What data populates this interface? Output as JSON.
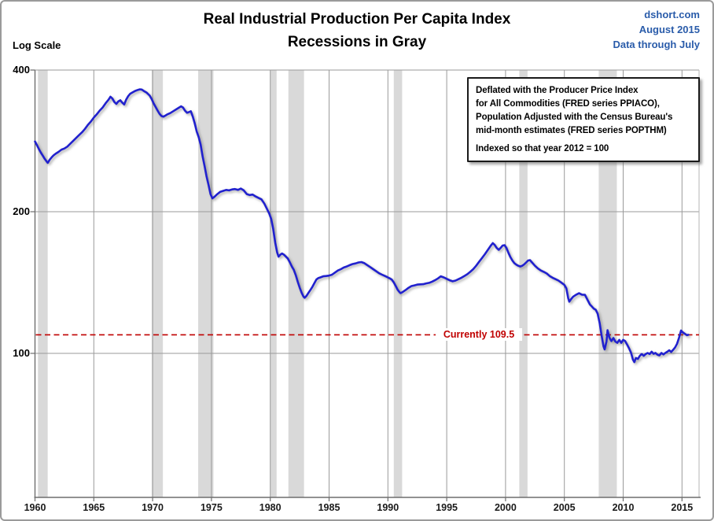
{
  "header": {
    "title_line1": "Real Industrial Production Per Capita Index",
    "title_line2": "Recessions in Gray",
    "source": "dshort.com",
    "issue_date": "August 2015",
    "data_through": "Data through July"
  },
  "axis": {
    "log_scale_label": "Log Scale",
    "y_tick_labels": [
      "400",
      "200",
      "100"
    ],
    "x_tick_labels": [
      "1960",
      "1965",
      "1970",
      "1975",
      "1980",
      "1985",
      "1990",
      "1995",
      "2000",
      "2005",
      "2010",
      "2015"
    ]
  },
  "annotation_box": {
    "lines": [
      "Deflated with the Producer Price Index",
      "for All Commodities (FRED series PPIACO),",
      "Population Adjusted with the Census Bureau's",
      "mid-month estimates (FRED series POPTHM)"
    ],
    "footnote": "Indexed so that year 2012 = 100"
  },
  "current_label": {
    "text": "Currently 109.5",
    "value": 109.5,
    "color": "#c00000"
  },
  "chart_data": {
    "type": "line",
    "title": "Real Industrial Production Per Capita Index",
    "subtitle": "Recessions in Gray",
    "y_scale": "log",
    "xlim": [
      1960,
      2016.45
    ],
    "ylim": [
      49.4,
      400
    ],
    "y_gridlines": [
      400,
      200,
      100
    ],
    "x_gridlines": [
      1960,
      1965,
      1970,
      1975,
      1980,
      1985,
      1990,
      1995,
      2000,
      2005,
      2010,
      2015
    ],
    "grid_color": "#9a9a9a",
    "axis_color": "#6e6e6e",
    "recession_color": "#d9d9d9",
    "recessions": [
      [
        1960.25,
        1961.08
      ],
      [
        1969.92,
        1970.87
      ],
      [
        1973.87,
        1975.17
      ],
      [
        1980.0,
        1980.54
      ],
      [
        1981.54,
        1982.87
      ],
      [
        1990.5,
        1991.21
      ],
      [
        2001.17,
        2001.87
      ],
      [
        2007.92,
        2009.46
      ]
    ],
    "reference_line": {
      "value": 109.5,
      "label": "Currently 109.5",
      "style": "dashed",
      "color": "#c00000"
    },
    "series": [
      {
        "name": "Real Industrial Production Per Capita Index (2012 = 100)",
        "color": "#2121ce",
        "points": [
          [
            1960.0,
            282
          ],
          [
            1960.17,
            277
          ],
          [
            1960.33,
            272
          ],
          [
            1960.5,
            267
          ],
          [
            1960.67,
            263
          ],
          [
            1960.83,
            259
          ],
          [
            1961.0,
            255.5
          ],
          [
            1961.08,
            254
          ],
          [
            1961.25,
            258
          ],
          [
            1961.42,
            261
          ],
          [
            1961.58,
            263.5
          ],
          [
            1961.75,
            265.5
          ],
          [
            1962.0,
            268
          ],
          [
            1962.25,
            271
          ],
          [
            1962.5,
            272.5
          ],
          [
            1962.75,
            275
          ],
          [
            1963.0,
            279
          ],
          [
            1963.25,
            283
          ],
          [
            1963.5,
            287
          ],
          [
            1963.75,
            291
          ],
          [
            1964.0,
            295
          ],
          [
            1964.25,
            300
          ],
          [
            1964.5,
            306
          ],
          [
            1964.75,
            311
          ],
          [
            1965.0,
            317
          ],
          [
            1965.25,
            322
          ],
          [
            1965.5,
            328
          ],
          [
            1965.75,
            333
          ],
          [
            1966.0,
            340
          ],
          [
            1966.25,
            346
          ],
          [
            1966.42,
            351
          ],
          [
            1966.58,
            348
          ],
          [
            1966.75,
            342
          ],
          [
            1966.92,
            339
          ],
          [
            1967.08,
            343
          ],
          [
            1967.25,
            345
          ],
          [
            1967.42,
            341
          ],
          [
            1967.58,
            338
          ],
          [
            1967.75,
            346
          ],
          [
            1967.92,
            352
          ],
          [
            1968.08,
            356
          ],
          [
            1968.25,
            358
          ],
          [
            1968.5,
            361
          ],
          [
            1968.75,
            363
          ],
          [
            1968.92,
            364
          ],
          [
            1969.08,
            363.5
          ],
          [
            1969.25,
            361
          ],
          [
            1969.5,
            358
          ],
          [
            1969.75,
            353
          ],
          [
            1969.92,
            347
          ],
          [
            1970.08,
            340
          ],
          [
            1970.25,
            334
          ],
          [
            1970.42,
            328
          ],
          [
            1970.58,
            323
          ],
          [
            1970.75,
            319.5
          ],
          [
            1970.92,
            318.5
          ],
          [
            1971.08,
            320
          ],
          [
            1971.25,
            322
          ],
          [
            1971.5,
            324
          ],
          [
            1971.75,
            327
          ],
          [
            1972.0,
            330
          ],
          [
            1972.25,
            333
          ],
          [
            1972.42,
            335
          ],
          [
            1972.58,
            333
          ],
          [
            1972.75,
            328
          ],
          [
            1972.92,
            324.5
          ],
          [
            1973.08,
            325.5
          ],
          [
            1973.25,
            327
          ],
          [
            1973.42,
            318
          ],
          [
            1973.58,
            308
          ],
          [
            1973.75,
            296
          ],
          [
            1973.92,
            288
          ],
          [
            1974.08,
            278
          ],
          [
            1974.25,
            262
          ],
          [
            1974.42,
            250
          ],
          [
            1974.58,
            238
          ],
          [
            1974.75,
            228
          ],
          [
            1974.92,
            218
          ],
          [
            1975.08,
            213.5
          ],
          [
            1975.25,
            215
          ],
          [
            1975.5,
            218
          ],
          [
            1975.75,
            220.5
          ],
          [
            1976.0,
            221.5
          ],
          [
            1976.25,
            222.5
          ],
          [
            1976.5,
            222
          ],
          [
            1976.75,
            223
          ],
          [
            1977.0,
            223.5
          ],
          [
            1977.25,
            222.5
          ],
          [
            1977.5,
            224
          ],
          [
            1977.75,
            222
          ],
          [
            1978.0,
            218
          ],
          [
            1978.25,
            217
          ],
          [
            1978.5,
            217.5
          ],
          [
            1978.75,
            215.5
          ],
          [
            1979.0,
            214
          ],
          [
            1979.25,
            212.5
          ],
          [
            1979.5,
            208
          ],
          [
            1979.75,
            202
          ],
          [
            1979.92,
            198
          ],
          [
            1980.08,
            193
          ],
          [
            1980.25,
            184
          ],
          [
            1980.42,
            172
          ],
          [
            1980.58,
            164
          ],
          [
            1980.7,
            160.5
          ],
          [
            1980.85,
            162
          ],
          [
            1981.0,
            163
          ],
          [
            1981.17,
            162
          ],
          [
            1981.33,
            160.5
          ],
          [
            1981.5,
            159
          ],
          [
            1981.67,
            156
          ],
          [
            1981.83,
            153
          ],
          [
            1982.0,
            150.5
          ],
          [
            1982.17,
            146.5
          ],
          [
            1982.33,
            142
          ],
          [
            1982.5,
            138
          ],
          [
            1982.67,
            134.5
          ],
          [
            1982.83,
            132
          ],
          [
            1982.92,
            131.3
          ],
          [
            1983.08,
            132.5
          ],
          [
            1983.25,
            134.5
          ],
          [
            1983.42,
            136.5
          ],
          [
            1983.58,
            138.5
          ],
          [
            1983.75,
            141
          ],
          [
            1983.92,
            143.5
          ],
          [
            1984.08,
            144.5
          ],
          [
            1984.25,
            145
          ],
          [
            1984.5,
            145.8
          ],
          [
            1984.75,
            146
          ],
          [
            1985.0,
            146.3
          ],
          [
            1985.25,
            147
          ],
          [
            1985.5,
            148.5
          ],
          [
            1985.75,
            150
          ],
          [
            1986.0,
            151
          ],
          [
            1986.25,
            152.2
          ],
          [
            1986.5,
            153
          ],
          [
            1986.75,
            154
          ],
          [
            1987.0,
            154.8
          ],
          [
            1987.25,
            155.3
          ],
          [
            1987.5,
            156
          ],
          [
            1987.75,
            156.3
          ],
          [
            1988.0,
            155.5
          ],
          [
            1988.25,
            154
          ],
          [
            1988.5,
            152.5
          ],
          [
            1988.75,
            151
          ],
          [
            1989.0,
            149.5
          ],
          [
            1989.25,
            148
          ],
          [
            1989.5,
            147
          ],
          [
            1989.75,
            146
          ],
          [
            1990.0,
            145
          ],
          [
            1990.17,
            144.3
          ],
          [
            1990.33,
            143.5
          ],
          [
            1990.5,
            141.5
          ],
          [
            1990.67,
            139
          ],
          [
            1990.83,
            136.5
          ],
          [
            1991.0,
            134.8
          ],
          [
            1991.08,
            134.3
          ],
          [
            1991.25,
            135
          ],
          [
            1991.5,
            136.3
          ],
          [
            1991.75,
            137.8
          ],
          [
            1992.0,
            139
          ],
          [
            1992.25,
            139.5
          ],
          [
            1992.5,
            140
          ],
          [
            1992.75,
            140.2
          ],
          [
            1993.0,
            140.3
          ],
          [
            1993.25,
            140.8
          ],
          [
            1993.5,
            141.2
          ],
          [
            1993.75,
            142
          ],
          [
            1994.0,
            143
          ],
          [
            1994.25,
            144.3
          ],
          [
            1994.5,
            145.8
          ],
          [
            1994.75,
            145
          ],
          [
            1995.0,
            144
          ],
          [
            1995.25,
            143
          ],
          [
            1995.5,
            142.3
          ],
          [
            1995.75,
            142.8
          ],
          [
            1996.0,
            143.8
          ],
          [
            1996.25,
            144.8
          ],
          [
            1996.5,
            146
          ],
          [
            1996.75,
            147.3
          ],
          [
            1997.0,
            149
          ],
          [
            1997.25,
            151
          ],
          [
            1997.5,
            153.5
          ],
          [
            1997.75,
            156.5
          ],
          [
            1998.0,
            159.5
          ],
          [
            1998.25,
            162.5
          ],
          [
            1998.5,
            166
          ],
          [
            1998.75,
            169.5
          ],
          [
            1998.92,
            171.5
          ],
          [
            1999.08,
            170
          ],
          [
            1999.25,
            167.5
          ],
          [
            1999.42,
            166
          ],
          [
            1999.58,
            167.5
          ],
          [
            1999.75,
            169.5
          ],
          [
            1999.92,
            169.8
          ],
          [
            2000.08,
            167.5
          ],
          [
            2000.25,
            163.5
          ],
          [
            2000.42,
            160
          ],
          [
            2000.58,
            157.5
          ],
          [
            2000.75,
            155.5
          ],
          [
            2000.92,
            154.3
          ],
          [
            2001.08,
            153.5
          ],
          [
            2001.25,
            153
          ],
          [
            2001.42,
            153.5
          ],
          [
            2001.58,
            154.5
          ],
          [
            2001.75,
            156
          ],
          [
            2001.92,
            157.5
          ],
          [
            2002.08,
            157.8
          ],
          [
            2002.25,
            156
          ],
          [
            2002.5,
            153.5
          ],
          [
            2002.75,
            151.5
          ],
          [
            2003.0,
            150
          ],
          [
            2003.25,
            149
          ],
          [
            2003.5,
            147.8
          ],
          [
            2003.75,
            146
          ],
          [
            2004.0,
            144.8
          ],
          [
            2004.25,
            143.8
          ],
          [
            2004.5,
            142.8
          ],
          [
            2004.75,
            141.3
          ],
          [
            2005.0,
            139.8
          ],
          [
            2005.17,
            137.5
          ],
          [
            2005.33,
            131
          ],
          [
            2005.42,
            128.8
          ],
          [
            2005.58,
            130.5
          ],
          [
            2005.75,
            132
          ],
          [
            2006.0,
            133.3
          ],
          [
            2006.25,
            134.2
          ],
          [
            2006.5,
            133.3
          ],
          [
            2006.75,
            133.2
          ],
          [
            2007.0,
            129.5
          ],
          [
            2007.17,
            127
          ],
          [
            2007.33,
            125.8
          ],
          [
            2007.5,
            124.5
          ],
          [
            2007.67,
            123.8
          ],
          [
            2007.83,
            121.5
          ],
          [
            2008.0,
            116
          ],
          [
            2008.17,
            109
          ],
          [
            2008.33,
            103.5
          ],
          [
            2008.42,
            102
          ],
          [
            2008.58,
            106
          ],
          [
            2008.67,
            112
          ],
          [
            2008.83,
            108
          ],
          [
            2009.0,
            106.2
          ],
          [
            2009.17,
            107.8
          ],
          [
            2009.33,
            106
          ],
          [
            2009.5,
            105.3
          ],
          [
            2009.67,
            106.8
          ],
          [
            2009.83,
            105.3
          ],
          [
            2010.0,
            106.8
          ],
          [
            2010.17,
            106.2
          ],
          [
            2010.33,
            104.5
          ],
          [
            2010.5,
            102.5
          ],
          [
            2010.67,
            100.3
          ],
          [
            2010.83,
            97
          ],
          [
            2010.95,
            95.8
          ],
          [
            2011.08,
            97.8
          ],
          [
            2011.25,
            97.3
          ],
          [
            2011.42,
            98.8
          ],
          [
            2011.58,
            99.7
          ],
          [
            2011.75,
            98.8
          ],
          [
            2011.92,
            99.7
          ],
          [
            2012.08,
            100.2
          ],
          [
            2012.25,
            99.7
          ],
          [
            2012.42,
            100.8
          ],
          [
            2012.58,
            99.8
          ],
          [
            2012.75,
            100.2
          ],
          [
            2012.92,
            99.3
          ],
          [
            2013.08,
            99
          ],
          [
            2013.25,
            100.2
          ],
          [
            2013.42,
            99.5
          ],
          [
            2013.58,
            100.2
          ],
          [
            2013.75,
            100.8
          ],
          [
            2013.92,
            101.5
          ],
          [
            2014.08,
            100.7
          ],
          [
            2014.25,
            101.8
          ],
          [
            2014.42,
            103
          ],
          [
            2014.58,
            104.8
          ],
          [
            2014.75,
            108
          ],
          [
            2014.92,
            111.8
          ],
          [
            2015.08,
            110.8
          ],
          [
            2015.25,
            110
          ],
          [
            2015.42,
            109.3
          ],
          [
            2015.54,
            109.5
          ]
        ]
      }
    ]
  }
}
